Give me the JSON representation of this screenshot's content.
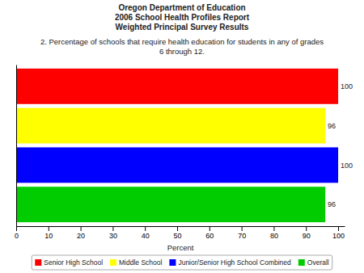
{
  "chart_data": {
    "type": "bar",
    "orientation": "horizontal",
    "title": "Oregon Department of Education\n2006 School Health Profiles Report\nWeighted Principal Survey Results",
    "subtitle": "2. Percentage of schools that require health education for students in any of grades\n6 through 12.",
    "categories": [
      "Overall",
      "Junior/Senior High School Combined",
      "Middle School",
      "Senior High School"
    ],
    "values": [
      96,
      100,
      96,
      100
    ],
    "colors": [
      "#00cc00",
      "#0000ff",
      "#ffff00",
      "#ff0000"
    ],
    "xlabel": "Percent",
    "xlim": [
      0,
      102
    ],
    "xticks": [
      0,
      10,
      20,
      30,
      40,
      50,
      60,
      70,
      80,
      90,
      100
    ],
    "data_labels": true,
    "legend": "bottom",
    "grid": false,
    "tick_labels": "x"
  }
}
